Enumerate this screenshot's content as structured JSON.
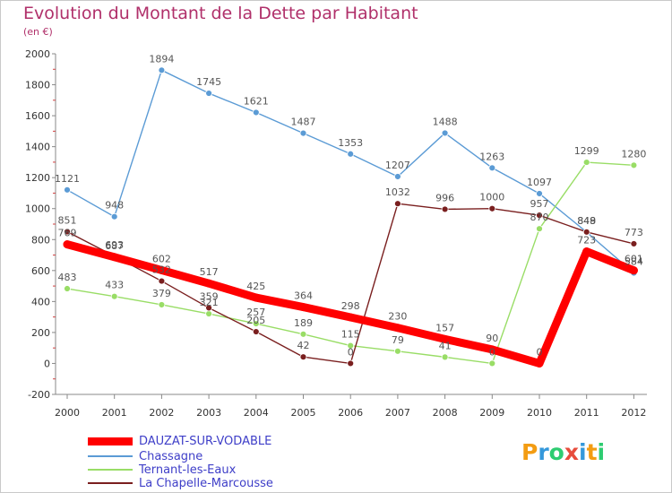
{
  "header": {
    "title": "Evolution du Montant de la Dette par Habitant",
    "unit": "(en €)"
  },
  "logo": {
    "text": "Proxiti",
    "letters": [
      {
        "ch": "P",
        "color": "#f39c12"
      },
      {
        "ch": "r",
        "color": "#3498db"
      },
      {
        "ch": "o",
        "color": "#2ecc71"
      },
      {
        "ch": "x",
        "color": "#e74c3c"
      },
      {
        "ch": "i",
        "color": "#3498db"
      },
      {
        "ch": "t",
        "color": "#f39c12"
      },
      {
        "ch": "i",
        "color": "#2ecc71"
      }
    ]
  },
  "chart_data": {
    "type": "line",
    "title": "Evolution du Montant de la Dette par Habitant",
    "subtitle": "(en €)",
    "x": [
      "2000",
      "2001",
      "2002",
      "2003",
      "2004",
      "2005",
      "2006",
      "2007",
      "2008",
      "2009",
      "2010",
      "2011",
      "2012"
    ],
    "ylim": [
      -200,
      2000
    ],
    "yticks": [
      -200,
      0,
      200,
      400,
      600,
      800,
      1000,
      1200,
      1400,
      1600,
      1800,
      2000
    ],
    "grid": false,
    "legend_position": "bottom-left",
    "series": [
      {
        "name": "Chassagne",
        "color": "#5b9bd5",
        "values": [
          1121,
          948,
          1894,
          1745,
          1621,
          1487,
          1353,
          1207,
          1488,
          1263,
          1097,
          848,
          584
        ]
      },
      {
        "name": "Ternant-les-Eaux",
        "color": "#99dd66",
        "values": [
          483,
          433,
          379,
          321,
          257,
          189,
          115,
          79,
          41,
          0,
          870,
          1299,
          1280
        ]
      },
      {
        "name": "La Chapelle-Marcousse",
        "color": "#7a1f1f",
        "values": [
          851,
          693,
          532,
          359,
          205,
          42,
          0,
          1032,
          996,
          1000,
          957,
          849,
          773
        ]
      },
      {
        "name": "DAUZAT-SUR-VODABLE",
        "color": "#ff0000",
        "values": [
          769,
          687,
          602,
          517,
          425,
          364,
          298,
          230,
          157,
          90,
          0,
          723,
          601
        ]
      }
    ],
    "legend": [
      "DAUZAT-SUR-VODABLE",
      "Chassagne",
      "Ternant-les-Eaux",
      "La Chapelle-Marcousse"
    ]
  }
}
